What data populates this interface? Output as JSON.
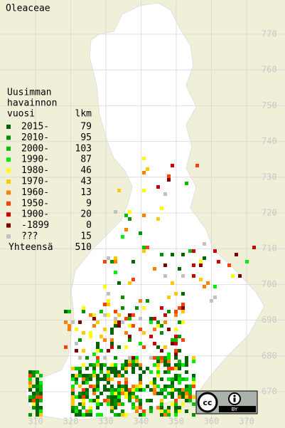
{
  "title": "Oleaceae",
  "legend": {
    "heading": [
      "Uusimman",
      "havainnon",
      "vuosi"
    ],
    "count_heading": "lkm",
    "rows": [
      {
        "label": "2015-",
        "count": 79,
        "color": "#006400"
      },
      {
        "label": "2010-",
        "count": 95,
        "color": "#009000"
      },
      {
        "label": "2000-",
        "count": 103,
        "color": "#00c000"
      },
      {
        "label": "1990-",
        "count": 87,
        "color": "#00ee00"
      },
      {
        "label": "1980-",
        "count": 46,
        "color": "#ffff00"
      },
      {
        "label": "1970-",
        "count": 43,
        "color": "#ffc800"
      },
      {
        "label": "1960-",
        "count": 13,
        "color": "#ff8000"
      },
      {
        "label": "1950-",
        "count": 9,
        "color": "#ff4000"
      },
      {
        "label": "1900-",
        "count": 20,
        "color": "#d00000"
      },
      {
        "label": "-1899",
        "count": 0,
        "color": "#800000"
      },
      {
        "label": "???",
        "count": 15,
        "color": "#c0c0c0"
      }
    ],
    "total_label": "Yhteensä",
    "total": 510
  },
  "north_ticks": [
    770,
    760,
    750,
    740,
    730,
    720,
    710,
    700,
    690,
    680,
    670
  ],
  "east_ticks": [
    310,
    320,
    330,
    340,
    350,
    360,
    370
  ],
  "license_badge": "BY"
}
